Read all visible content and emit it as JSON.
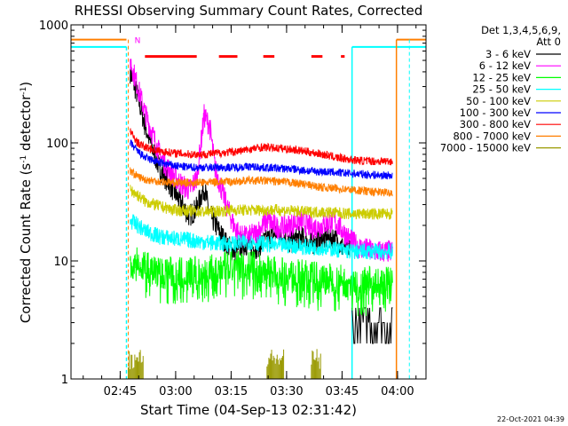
{
  "chart_data": {
    "type": "line",
    "title": "RHESSI Observing Summary Count Rates, Corrected",
    "xlabel": "Start Time (04-Sep-13 02:31:42)",
    "ylabel": "Corrected Count Rate (s",
    "ylabel_sup1": "-1",
    "ylabel_mid": " detector",
    "ylabel_sup2": "-1",
    "ylabel_end": ")",
    "y_scale": "log",
    "ylim": [
      1,
      1000
    ],
    "xlim_minutes": [
      0,
      96
    ],
    "x_ticks": [
      {
        "label": "02:45",
        "minute": 13.3
      },
      {
        "label": "03:00",
        "minute": 28.3
      },
      {
        "label": "03:15",
        "minute": 43.3
      },
      {
        "label": "03:30",
        "minute": 58.3
      },
      {
        "label": "03:45",
        "minute": 73.3
      },
      {
        "label": "04:00",
        "minute": 88.3
      }
    ],
    "y_ticks": [
      {
        "label": "1",
        "value": 1
      },
      {
        "label": "10",
        "value": 10
      },
      {
        "label": "100",
        "value": 100
      },
      {
        "label": "1000",
        "value": 1000
      }
    ],
    "legend_header": [
      "Det 1,3,4,5,6,9,",
      "Att 0"
    ],
    "legend_position": "right",
    "series": [
      {
        "name": "3 - 6 keV",
        "color": "#000000",
        "points": [
          [
            16,
            400
          ],
          [
            18,
            250
          ],
          [
            20,
            140
          ],
          [
            22,
            90
          ],
          [
            24,
            60
          ],
          [
            26,
            48
          ],
          [
            28,
            38
          ],
          [
            30,
            30
          ],
          [
            32,
            24
          ],
          [
            34,
            28
          ],
          [
            36,
            42
          ],
          [
            37.5,
            25
          ],
          [
            40,
            18
          ],
          [
            42,
            14
          ],
          [
            44,
            12
          ],
          [
            47,
            14
          ],
          [
            50,
            13
          ],
          [
            53,
            15
          ],
          [
            56,
            18
          ],
          [
            59,
            14
          ],
          [
            62,
            16
          ],
          [
            65,
            14
          ],
          [
            68,
            15
          ],
          [
            71,
            16
          ],
          [
            73.5,
            13
          ],
          [
            75.5,
            13
          ]
        ]
      },
      {
        "name": "6 - 12 keV",
        "color": "#ff00ff",
        "points": [
          [
            16,
            500
          ],
          [
            18,
            300
          ],
          [
            20,
            180
          ],
          [
            22,
            120
          ],
          [
            24,
            80
          ],
          [
            26,
            62
          ],
          [
            28,
            52
          ],
          [
            30,
            44
          ],
          [
            32,
            40
          ],
          [
            34,
            50
          ],
          [
            36,
            170
          ],
          [
            37.5,
            140
          ],
          [
            39,
            60
          ],
          [
            42,
            30
          ],
          [
            44,
            20
          ],
          [
            46,
            16
          ],
          [
            48,
            16
          ],
          [
            50,
            17
          ],
          [
            53,
            22
          ],
          [
            56,
            19
          ],
          [
            59,
            20
          ],
          [
            62,
            22
          ],
          [
            65,
            19
          ],
          [
            68,
            20
          ],
          [
            71,
            22
          ],
          [
            73.5,
            18
          ],
          [
            75.5,
            15
          ],
          [
            78,
            13
          ],
          [
            82,
            12
          ],
          [
            87,
            12
          ]
        ]
      },
      {
        "name": "12 - 25 keV",
        "color": "#00ff00",
        "points": [
          [
            16,
            10
          ],
          [
            18,
            9.5
          ],
          [
            20,
            9
          ],
          [
            24,
            8
          ],
          [
            28,
            8
          ],
          [
            32,
            8
          ],
          [
            36,
            8
          ],
          [
            40,
            8.5
          ],
          [
            44,
            9
          ],
          [
            48,
            9
          ],
          [
            52,
            8.5
          ],
          [
            56,
            8
          ],
          [
            60,
            7.5
          ],
          [
            64,
            7.5
          ],
          [
            68,
            7
          ],
          [
            72,
            7
          ],
          [
            76,
            6.5
          ],
          [
            80,
            6.5
          ],
          [
            84,
            6.5
          ],
          [
            87,
            6.5
          ]
        ]
      },
      {
        "name": "25 - 50 keV",
        "color": "#00ffff",
        "points": [
          [
            16,
            22
          ],
          [
            18,
            20
          ],
          [
            20,
            18
          ],
          [
            24,
            16
          ],
          [
            28,
            15.5
          ],
          [
            32,
            15
          ],
          [
            36,
            14.5
          ],
          [
            40,
            14
          ],
          [
            44,
            14
          ],
          [
            48,
            14.5
          ],
          [
            52,
            14
          ],
          [
            56,
            13.5
          ],
          [
            60,
            13.5
          ],
          [
            64,
            13
          ],
          [
            68,
            13
          ],
          [
            72,
            12.5
          ],
          [
            76,
            12
          ],
          [
            80,
            12
          ],
          [
            84,
            12
          ],
          [
            87,
            12
          ]
        ]
      },
      {
        "name": "50 - 100 keV",
        "color": "#cccc00",
        "points": [
          [
            16,
            40
          ],
          [
            18,
            36
          ],
          [
            20,
            32
          ],
          [
            24,
            29
          ],
          [
            28,
            27
          ],
          [
            32,
            26.5
          ],
          [
            36,
            26
          ],
          [
            40,
            26.5
          ],
          [
            44,
            27
          ],
          [
            48,
            27
          ],
          [
            52,
            27
          ],
          [
            56,
            27
          ],
          [
            60,
            26.5
          ],
          [
            64,
            26
          ],
          [
            68,
            26
          ],
          [
            72,
            25.5
          ],
          [
            76,
            25
          ],
          [
            80,
            25
          ],
          [
            84,
            25
          ],
          [
            87,
            25
          ]
        ]
      },
      {
        "name": "100 - 300 keV",
        "color": "#0000ff",
        "points": [
          [
            16,
            100
          ],
          [
            18,
            85
          ],
          [
            20,
            75
          ],
          [
            24,
            68
          ],
          [
            28,
            64
          ],
          [
            32,
            62
          ],
          [
            36,
            62
          ],
          [
            40,
            62
          ],
          [
            44,
            62
          ],
          [
            48,
            63
          ],
          [
            52,
            62
          ],
          [
            56,
            61
          ],
          [
            60,
            60
          ],
          [
            64,
            58
          ],
          [
            68,
            57
          ],
          [
            72,
            56
          ],
          [
            76,
            55
          ],
          [
            80,
            54
          ],
          [
            84,
            53
          ],
          [
            87,
            53
          ]
        ]
      },
      {
        "name": "300 - 800 keV",
        "color": "#ff0000",
        "points": [
          [
            16,
            125
          ],
          [
            18,
            100
          ],
          [
            20,
            92
          ],
          [
            24,
            85
          ],
          [
            28,
            82
          ],
          [
            32,
            80
          ],
          [
            36,
            80
          ],
          [
            40,
            82
          ],
          [
            44,
            84
          ],
          [
            48,
            88
          ],
          [
            52,
            92
          ],
          [
            56,
            90
          ],
          [
            60,
            88
          ],
          [
            64,
            84
          ],
          [
            68,
            80
          ],
          [
            72,
            75
          ],
          [
            76,
            72
          ],
          [
            80,
            70
          ],
          [
            84,
            70
          ],
          [
            87,
            70
          ]
        ]
      },
      {
        "name": "800 - 7000 keV",
        "color": "#ff7f00",
        "points": [
          [
            16,
            58
          ],
          [
            18,
            52
          ],
          [
            20,
            49
          ],
          [
            24,
            47
          ],
          [
            28,
            46
          ],
          [
            32,
            46
          ],
          [
            36,
            46
          ],
          [
            40,
            47
          ],
          [
            44,
            47
          ],
          [
            48,
            48
          ],
          [
            52,
            48
          ],
          [
            56,
            47
          ],
          [
            60,
            46
          ],
          [
            64,
            44
          ],
          [
            68,
            42
          ],
          [
            72,
            41
          ],
          [
            76,
            40
          ],
          [
            80,
            39
          ],
          [
            84,
            38
          ],
          [
            87,
            38
          ]
        ]
      },
      {
        "name": "7000 - 15000 keV",
        "color": "#999900",
        "points": []
      }
    ],
    "attenuator_state_color": "#00ffff",
    "decimation_color": "#ff7f00",
    "flare_flag_color": "#ff0000",
    "flare_flag_label": "N"
  },
  "footer": {
    "timestamp": "22-Oct-2021 04:39"
  }
}
